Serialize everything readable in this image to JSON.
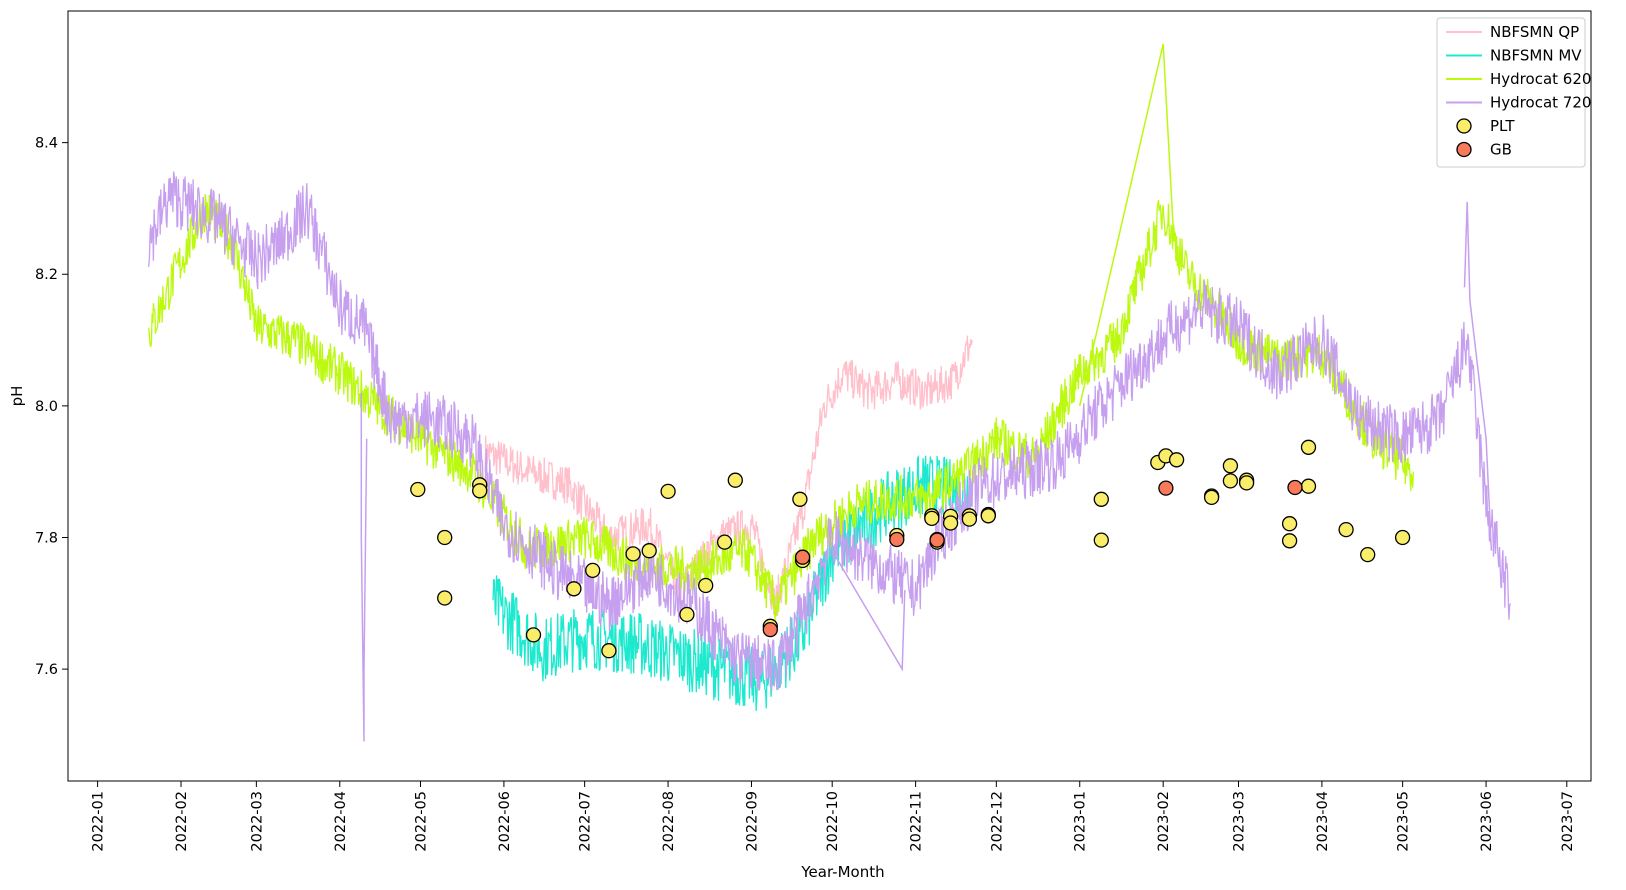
{
  "chart_data": {
    "type": "line",
    "xlabel": "Year-Month",
    "ylabel": "pH",
    "ylim": [
      7.43,
      8.6
    ],
    "xlim": [
      "2021-12-21",
      "2023-07-10"
    ],
    "grid": false,
    "legend_position": "top-right",
    "x_ticks": [
      "2022-01",
      "2022-02",
      "2022-03",
      "2022-04",
      "2022-05",
      "2022-06",
      "2022-07",
      "2022-08",
      "2022-09",
      "2022-10",
      "2022-11",
      "2022-12",
      "2023-01",
      "2023-02",
      "2023-03",
      "2023-04",
      "2023-05",
      "2023-06",
      "2023-07"
    ],
    "y_ticks": [
      "7.6",
      "7.8",
      "8.0",
      "8.2",
      "8.4"
    ],
    "series": [
      {
        "name": "NBFSMN QP",
        "kind": "line",
        "color": "#ffc0cb",
        "noise": 0.03,
        "points": [
          [
            "2022-05-25",
            7.93
          ],
          [
            "2022-06-10",
            7.9
          ],
          [
            "2022-06-25",
            7.88
          ],
          [
            "2022-07-10",
            7.8
          ],
          [
            "2022-07-25",
            7.82
          ],
          [
            "2022-08-05",
            7.72
          ],
          [
            "2022-08-20",
            7.8
          ],
          [
            "2022-09-01",
            7.82
          ],
          [
            "2022-09-10",
            7.7
          ],
          [
            "2022-09-20",
            7.84
          ],
          [
            "2022-09-28",
            8.0
          ],
          [
            "2022-10-05",
            8.05
          ],
          [
            "2022-10-15",
            8.02
          ],
          [
            "2022-10-25",
            8.04
          ],
          [
            "2022-11-05",
            8.02
          ],
          [
            "2022-11-15",
            8.04
          ],
          [
            "2022-11-22",
            8.1
          ]
        ]
      },
      {
        "name": "NBFSMN MV",
        "kind": "line",
        "color": "#1de9cf",
        "noise": 0.05,
        "points": [
          [
            "2022-05-28",
            7.7
          ],
          [
            "2022-06-15",
            7.63
          ],
          [
            "2022-07-01",
            7.65
          ],
          [
            "2022-07-20",
            7.64
          ],
          [
            "2022-08-05",
            7.62
          ],
          [
            "2022-08-20",
            7.6
          ],
          [
            "2022-09-05",
            7.58
          ],
          [
            "2022-09-20",
            7.65
          ],
          [
            "2022-10-01",
            7.78
          ],
          [
            "2022-10-15",
            7.83
          ],
          [
            "2022-10-25",
            7.86
          ],
          [
            "2022-11-05",
            7.88
          ],
          [
            "2022-11-15",
            7.87
          ],
          [
            "2022-11-22",
            7.88
          ]
        ]
      },
      {
        "name": "Hydrocat 620",
        "kind": "line",
        "color": "#bbf90f",
        "noise": 0.035,
        "points": [
          [
            "2022-01-20",
            8.11
          ],
          [
            "2022-02-01",
            8.22
          ],
          [
            "2022-02-10",
            8.3
          ],
          [
            "2022-02-20",
            8.25
          ],
          [
            "2022-03-01",
            8.12
          ],
          [
            "2022-03-15",
            8.1
          ],
          [
            "2022-04-01",
            8.05
          ],
          [
            "2022-04-15",
            8.0
          ],
          [
            "2022-05-01",
            7.95
          ],
          [
            "2022-05-20",
            7.9
          ],
          [
            "2022-06-10",
            7.78
          ],
          [
            "2022-07-01",
            7.8
          ],
          [
            "2022-07-20",
            7.76
          ],
          [
            "2022-08-10",
            7.75
          ],
          [
            "2022-08-30",
            7.78
          ],
          [
            "2022-09-10",
            7.7
          ],
          [
            "2022-09-25",
            7.8
          ],
          [
            "2022-10-10",
            7.85
          ],
          [
            "2022-10-25",
            7.86
          ],
          [
            "2022-11-05",
            7.86
          ],
          [
            "2022-11-20",
            7.9
          ],
          [
            "2022-12-01",
            7.95
          ],
          [
            "2022-12-15",
            7.92
          ],
          [
            "2023-01-01",
            8.05
          ],
          [
            "2023-01-15",
            8.1
          ],
          [
            "2023-02-01",
            8.3
          ],
          [
            "2023-02-10",
            8.2
          ],
          [
            "2023-02-20",
            8.15
          ],
          [
            "2023-03-01",
            8.1
          ],
          [
            "2023-03-15",
            8.07
          ],
          [
            "2023-04-01",
            8.08
          ],
          [
            "2023-04-20",
            7.95
          ],
          [
            "2023-05-05",
            7.9
          ]
        ]
      },
      {
        "name": "Hydrocat 720",
        "kind": "line",
        "color": "#c79fef",
        "noise": 0.045,
        "points": [
          [
            "2022-01-20",
            8.25
          ],
          [
            "2022-01-28",
            8.32
          ],
          [
            "2022-02-15",
            8.28
          ],
          [
            "2022-03-01",
            8.22
          ],
          [
            "2022-03-10",
            8.25
          ],
          [
            "2022-03-20",
            8.3
          ],
          [
            "2022-04-01",
            8.15
          ],
          [
            "2022-04-10",
            8.12
          ],
          [
            "2022-04-20",
            7.98
          ],
          [
            "2022-05-05",
            7.98
          ],
          [
            "2022-05-20",
            7.95
          ],
          [
            "2022-06-01",
            7.82
          ],
          [
            "2022-06-20",
            7.75
          ],
          [
            "2022-07-10",
            7.7
          ],
          [
            "2022-07-25",
            7.75
          ],
          [
            "2022-08-10",
            7.7
          ],
          [
            "2022-08-25",
            7.62
          ],
          [
            "2022-09-10",
            7.6
          ],
          [
            "2022-09-20",
            7.68
          ],
          [
            "2022-10-01",
            7.8
          ],
          [
            "2022-11-01",
            7.72
          ],
          [
            "2022-11-10",
            7.8
          ],
          [
            "2022-11-25",
            7.88
          ],
          [
            "2022-12-10",
            7.9
          ],
          [
            "2022-12-25",
            7.92
          ],
          [
            "2023-01-05",
            7.98
          ],
          [
            "2023-01-20",
            8.05
          ],
          [
            "2023-02-05",
            8.12
          ],
          [
            "2023-02-15",
            8.15
          ],
          [
            "2023-03-01",
            8.12
          ],
          [
            "2023-03-15",
            8.05
          ],
          [
            "2023-04-01",
            8.1
          ],
          [
            "2023-04-15",
            7.98
          ],
          [
            "2023-05-01",
            7.95
          ],
          [
            "2023-05-15",
            7.98
          ],
          [
            "2023-05-25",
            8.1
          ],
          [
            "2023-06-01",
            7.85
          ],
          [
            "2023-06-10",
            7.7
          ]
        ]
      }
    ],
    "scatter": [
      {
        "name": "PLT",
        "color": "#f9ed69",
        "points": [
          [
            "2022-04-30",
            7.873
          ],
          [
            "2022-05-10",
            7.8
          ],
          [
            "2022-05-10",
            7.708
          ],
          [
            "2022-05-23",
            7.88
          ],
          [
            "2022-05-23",
            7.871
          ],
          [
            "2022-06-12",
            7.652
          ],
          [
            "2022-06-27",
            7.722
          ],
          [
            "2022-07-04",
            7.75
          ],
          [
            "2022-07-10",
            7.628
          ],
          [
            "2022-07-19",
            7.775
          ],
          [
            "2022-07-25",
            7.78
          ],
          [
            "2022-08-01",
            7.87
          ],
          [
            "2022-08-08",
            7.683
          ],
          [
            "2022-08-15",
            7.727
          ],
          [
            "2022-08-22",
            7.793
          ],
          [
            "2022-08-26",
            7.887
          ],
          [
            "2022-09-08",
            7.665
          ],
          [
            "2022-09-19",
            7.858
          ],
          [
            "2022-09-20",
            7.765
          ],
          [
            "2022-10-25",
            7.803
          ],
          [
            "2022-11-07",
            7.833
          ],
          [
            "2022-11-07",
            7.829
          ],
          [
            "2022-11-09",
            7.797
          ],
          [
            "2022-11-09",
            7.793
          ],
          [
            "2022-11-14",
            7.832
          ],
          [
            "2022-11-14",
            7.822
          ],
          [
            "2022-11-21",
            7.833
          ],
          [
            "2022-11-21",
            7.828
          ],
          [
            "2022-11-28",
            7.835
          ],
          [
            "2022-11-28",
            7.833
          ],
          [
            "2023-01-09",
            7.858
          ],
          [
            "2023-01-09",
            7.796
          ],
          [
            "2023-01-30",
            7.914
          ],
          [
            "2023-02-02",
            7.924
          ],
          [
            "2023-02-06",
            7.918
          ],
          [
            "2023-02-19",
            7.863
          ],
          [
            "2023-02-19",
            7.861
          ],
          [
            "2023-02-26",
            7.909
          ],
          [
            "2023-02-26",
            7.886
          ],
          [
            "2023-03-04",
            7.887
          ],
          [
            "2023-03-04",
            7.883
          ],
          [
            "2023-03-20",
            7.821
          ],
          [
            "2023-03-20",
            7.795
          ],
          [
            "2023-03-27",
            7.937
          ],
          [
            "2023-03-27",
            7.878
          ],
          [
            "2023-04-10",
            7.812
          ],
          [
            "2023-04-18",
            7.774
          ],
          [
            "2023-05-01",
            7.8
          ]
        ]
      },
      {
        "name": "GB",
        "color": "#f97a5a",
        "points": [
          [
            "2022-09-08",
            7.66
          ],
          [
            "2022-09-20",
            7.77
          ],
          [
            "2022-10-25",
            7.797
          ],
          [
            "2022-11-09",
            7.796
          ],
          [
            "2023-02-02",
            7.875
          ],
          [
            "2023-03-22",
            7.876
          ]
        ]
      }
    ],
    "extra_traces": [
      {
        "series": "Hydrocat 720",
        "points": [
          [
            "2022-04-09",
            8.02
          ],
          [
            "2022-04-09",
            7.8
          ],
          [
            "2022-04-10",
            7.49
          ],
          [
            "2022-04-10",
            7.6
          ],
          [
            "2022-04-11",
            7.95
          ]
        ]
      },
      {
        "series": "Hydrocat 720",
        "points": [
          [
            "2022-10-01",
            7.78
          ],
          [
            "2022-10-27",
            7.6
          ],
          [
            "2022-10-28",
            7.72
          ]
        ]
      },
      {
        "series": "Hydrocat 720",
        "points": [
          [
            "2023-05-24",
            8.18
          ],
          [
            "2023-05-25",
            8.31
          ],
          [
            "2023-05-26",
            8.16
          ],
          [
            "2023-06-01",
            7.95
          ],
          [
            "2023-06-03",
            7.78
          ]
        ]
      },
      {
        "series": "Hydrocat 620",
        "points": [
          [
            "2023-01-01",
            8.0
          ],
          [
            "2023-02-01",
            8.55
          ],
          [
            "2023-02-05",
            8.25
          ]
        ]
      }
    ]
  }
}
